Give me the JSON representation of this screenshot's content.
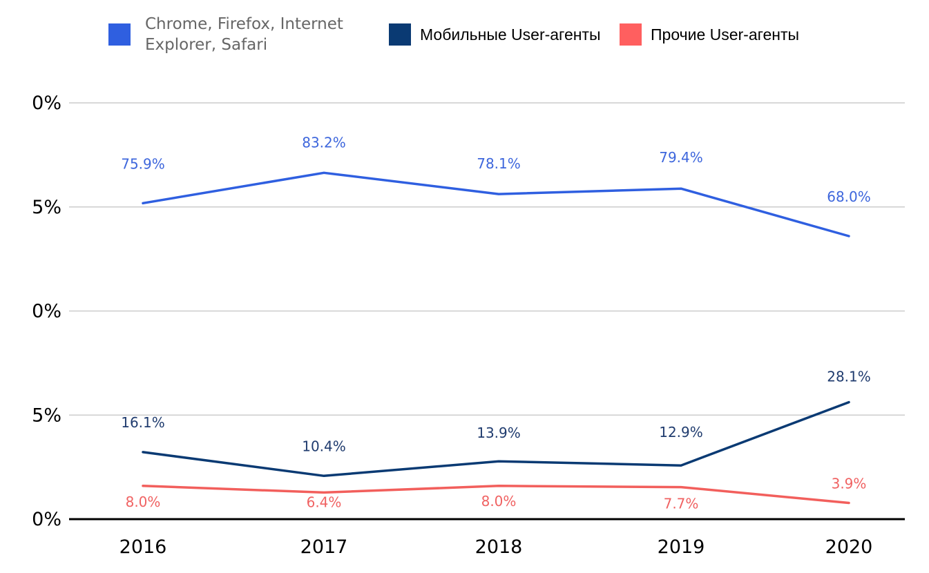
{
  "chart_data": {
    "type": "line",
    "title": "",
    "xlabel": "",
    "ylabel": "",
    "categories": [
      "2016",
      "2017",
      "2018",
      "2019",
      "2020"
    ],
    "y_tick_labels": [
      "0%",
      "5%",
      "0%",
      "5%",
      "0%"
    ],
    "ylim": [
      0,
      100
    ],
    "grid": true,
    "legend_position": "top",
    "series": [
      {
        "name": "Chrome, Firefox, Internet Explorer, Safari",
        "legend_lines": [
          "Chrome, Firefox, Internet",
          "Explorer, Safari"
        ],
        "color": "#2f5fe0",
        "label_color": "#3d66dc",
        "values": [
          75.9,
          83.2,
          78.1,
          79.4,
          68.0
        ],
        "labels": [
          "75.9%",
          "83.2%",
          "78.1%",
          "79.4%",
          "68.0%"
        ]
      },
      {
        "name": "Мобильные User-агенты",
        "color": "#0a3a73",
        "label_color": "#1f3b6e",
        "values": [
          16.1,
          10.4,
          13.9,
          12.9,
          28.1
        ],
        "labels": [
          "16.1%",
          "10.4%",
          "13.9%",
          "12.9%",
          "28.1%"
        ]
      },
      {
        "name": "Прочие User-агенты",
        "color": "#f25f5c",
        "label_color": "#f06262",
        "values": [
          8.0,
          6.4,
          8.0,
          7.7,
          3.9
        ],
        "labels": [
          "8.0%",
          "6.4%",
          "8.0%",
          "7.7%",
          "3.9%"
        ]
      }
    ]
  }
}
